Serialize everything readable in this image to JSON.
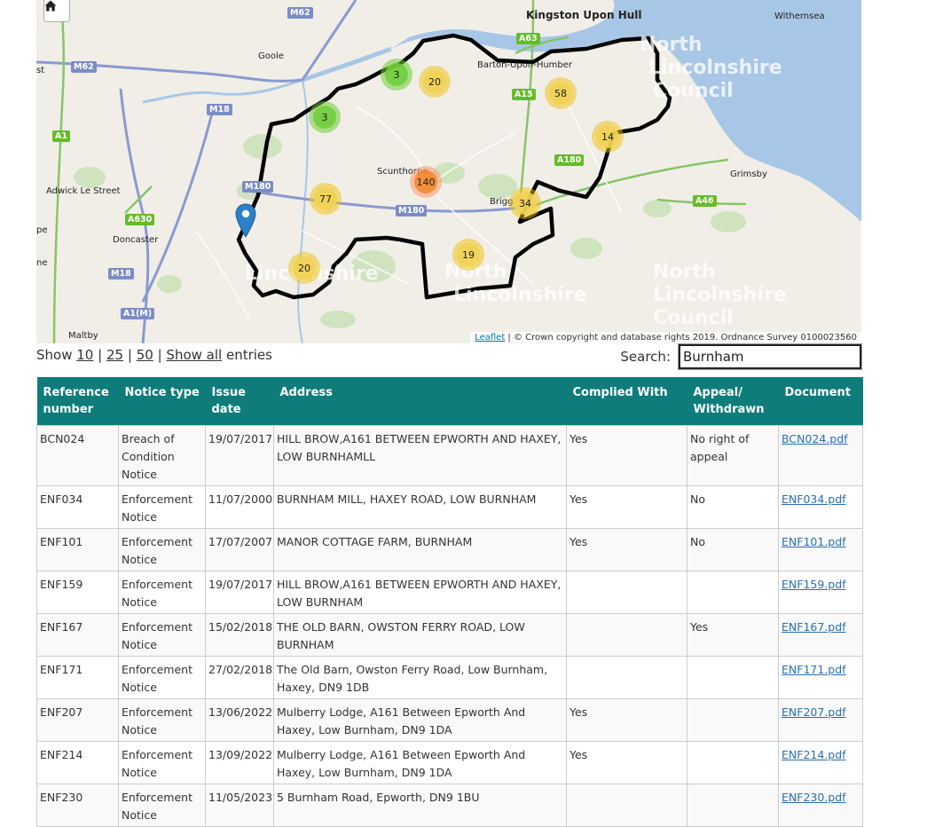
{
  "map": {
    "home_icon": "home-icon",
    "places": [
      {
        "name": "Kingston Upon Hull",
        "big": true
      },
      {
        "name": "Withernsea"
      },
      {
        "name": "Goole"
      },
      {
        "name": "Barton-Upon-Humber"
      },
      {
        "name": "Scunthorpe"
      },
      {
        "name": "Brigg"
      },
      {
        "name": "Grimsby"
      },
      {
        "name": "Adwick Le Street"
      },
      {
        "name": "Doncaster"
      },
      {
        "name": "Maltby"
      },
      {
        "name": "pe"
      },
      {
        "name": "ne"
      },
      {
        "name": "st"
      }
    ],
    "roads": {
      "m62a": "M62",
      "m62b": "M62",
      "m18a": "M18",
      "m18b": "M18",
      "m180a": "M180",
      "m180b": "M180",
      "a1m": "A1(M)",
      "a63": "A63",
      "a15": "A15",
      "a180": "A180",
      "a46": "A46",
      "a1": "A1",
      "a630": "A630"
    },
    "council_labels": [
      "North",
      "Lincolnshire",
      "Council"
    ],
    "clusters": [
      {
        "count": "3",
        "color": "green"
      },
      {
        "count": "3",
        "color": "green"
      },
      {
        "count": "20",
        "color": "yellow"
      },
      {
        "count": "58",
        "color": "yellow"
      },
      {
        "count": "14",
        "color": "yellow"
      },
      {
        "count": "77",
        "color": "yellow"
      },
      {
        "count": "140",
        "color": "orange"
      },
      {
        "count": "34",
        "color": "yellow"
      },
      {
        "count": "19",
        "color": "yellow"
      },
      {
        "count": "20",
        "color": "yellow"
      }
    ],
    "attribution_link": "Leaflet",
    "attribution_text": " | © Crown copyright and database rights 2019. Ordnance Survey 0100023560"
  },
  "controls": {
    "show_prefix": "Show",
    "options": [
      "10",
      "25",
      "50",
      "Show all"
    ],
    "separator": "|",
    "entries": "entries",
    "search_label": "Search:",
    "search_value": "Burnham"
  },
  "table": {
    "headers": [
      "Reference number",
      "Notice type",
      "Issue date",
      "Address",
      "Complied With",
      "Appeal/ Withdrawn",
      "Document"
    ],
    "rows": [
      [
        "BCN024",
        "Breach of Condition Notice",
        "19/07/2017",
        "HILL BROW,A161 BETWEEN EPWORTH AND HAXEY, LOW BURNHAMLL",
        "Yes",
        "No right of appeal",
        "BCN024.pdf"
      ],
      [
        "ENF034",
        "Enforcement Notice",
        "11/07/2000",
        "BURNHAM MILL, HAXEY ROAD, LOW BURNHAM",
        "Yes",
        "No",
        "ENF034.pdf"
      ],
      [
        "ENF101",
        "Enforcement Notice",
        "17/07/2007",
        "MANOR COTTAGE FARM, BURNHAM",
        "Yes",
        "No",
        "ENF101.pdf"
      ],
      [
        "ENF159",
        "Enforcement Notice",
        "19/07/2017",
        "HILL BROW,A161 BETWEEN EPWORTH AND HAXEY, LOW BURNHAM",
        "",
        "",
        "ENF159.pdf"
      ],
      [
        "ENF167",
        "Enforcement Notice",
        "15/02/2018",
        "THE OLD BARN, OWSTON FERRY ROAD, LOW BURNHAM",
        "",
        "Yes",
        "ENF167.pdf"
      ],
      [
        "ENF171",
        "Enforcement Notice",
        "27/02/2018",
        "The Old Barn, Owston Ferry Road, Low Burnham, Haxey, DN9 1DB",
        "",
        "",
        "ENF171.pdf"
      ],
      [
        "ENF207",
        "Enforcement Notice",
        "13/06/2022",
        "Mulberry Lodge, A161 Between Epworth And Haxey, Low Burnham, DN9 1DA",
        "Yes",
        "",
        "ENF207.pdf"
      ],
      [
        "ENF214",
        "Enforcement Notice",
        "13/09/2022",
        "Mulberry Lodge, A161 Between Epworth And Haxey, Low Burnham, DN9 1DA",
        "Yes",
        "",
        "ENF214.pdf"
      ],
      [
        "ENF230",
        "Enforcement Notice",
        "11/05/2023",
        "5 Burnham Road, Epworth, DN9 1BU",
        "",
        "",
        "ENF230.pdf"
      ]
    ]
  }
}
